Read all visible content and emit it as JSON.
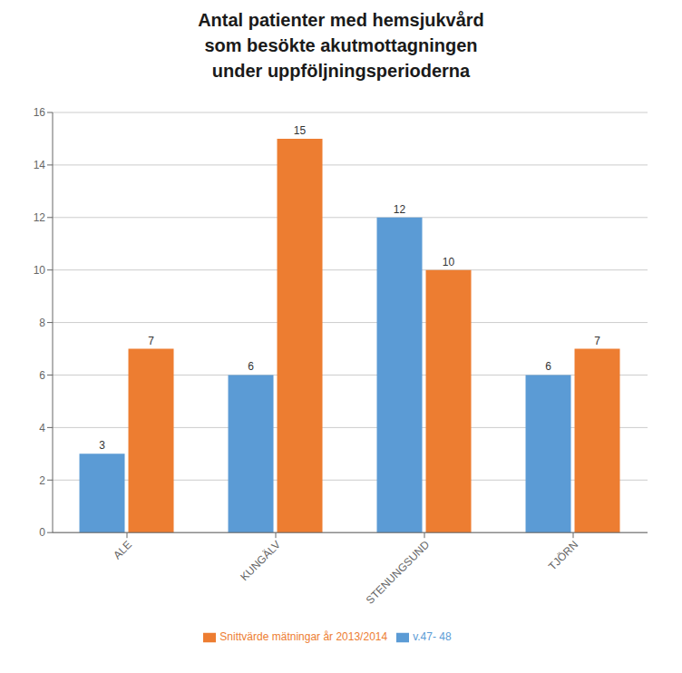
{
  "chart_data": {
    "type": "bar",
    "title": "Antal patienter med hemsjukvård\nsom besökte akutmottagningen\nunder uppföljningsperioderna",
    "categories": [
      "ALE",
      "KUNGÄLV",
      "STENUNGSUND",
      "TJÖRN"
    ],
    "series": [
      {
        "name": "v.47- 48",
        "color": "#5B9BD5",
        "values": [
          3,
          6,
          12,
          6
        ]
      },
      {
        "name": "Snittvärde mätningar år 2013/2014",
        "color": "#ED7D31",
        "values": [
          7,
          15,
          10,
          7
        ]
      }
    ],
    "ylim": [
      0,
      16
    ],
    "yticks": [
      0,
      2,
      4,
      6,
      8,
      10,
      12,
      14,
      16
    ],
    "grid": true,
    "legend": "bottom",
    "data_labels": true
  }
}
